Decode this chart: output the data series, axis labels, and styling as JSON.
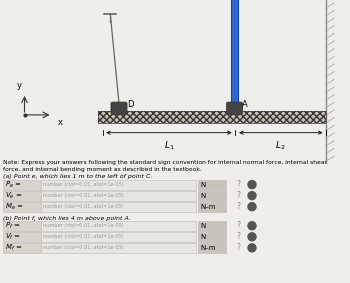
{
  "bg_color": "#f0eeea",
  "note_text_line1": "Note: Express your answers following the standard sign convention for internal normal force, internal shear",
  "note_text_line2": "force, and internal bending moment as described in the textbook.",
  "part_a_label": "(a) Point e, which lies 1 m to the left of point C.",
  "part_b_label": "(b) Point f, which lies 4 m above point A.",
  "rows_a": [
    {
      "label": "$P_e$ =",
      "placeholder": "number (rtol=0.01, atol=1e-05)",
      "unit": "N"
    },
    {
      "label": "$V_e$ =",
      "placeholder": "number (rtol=0.01, atol=1e-05)",
      "unit": "N"
    },
    {
      "label": "$M_e$ =",
      "placeholder": "number (rtol=0.01, atol=1e-05)",
      "unit": "N–m"
    }
  ],
  "rows_b": [
    {
      "label": "$P_f$ =",
      "placeholder": "number (rtol=0.01, atol=1e-05)",
      "unit": "N"
    },
    {
      "label": "$V_f$ =",
      "placeholder": "number (rtol=0.01, atol=1e-05)",
      "unit": "N"
    },
    {
      "label": "$M_f$ =",
      "placeholder": "number (rtol=0.01, atol=1e-05)",
      "unit": "N–m"
    }
  ],
  "input_bg": "#e8e6e0",
  "unit_bg": "#c8c4bc",
  "label_bg": "#d8d4cc",
  "circle_color": "#555555",
  "beam_color": "#c8c0b0",
  "beam_edge": "#666666",
  "blue_col_face": "#3366cc",
  "blue_col_edge": "#1144aa",
  "cable_color": "#666666",
  "axis_color": "#333333"
}
